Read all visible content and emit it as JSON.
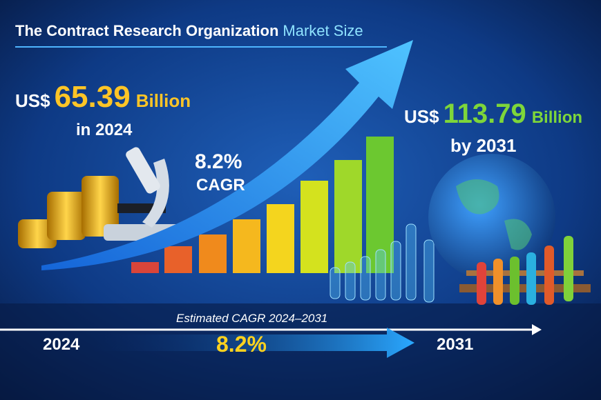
{
  "header": {
    "title": "The Contract Research Organization",
    "title_highlight": "Market Size"
  },
  "start_value": {
    "currency": "US$",
    "amount": "65.39",
    "unit": "Billion",
    "period": "in 2024"
  },
  "growth": {
    "rate": "8.2%",
    "label": "CAGR"
  },
  "end_value": {
    "currency": "US$",
    "amount": "113.79",
    "unit": "Billion",
    "period": "by 2031"
  },
  "timeline": {
    "caption": "Estimated CAGR 2024–2031",
    "start": "2024",
    "rate": "8.2%",
    "end": "2031"
  }
}
